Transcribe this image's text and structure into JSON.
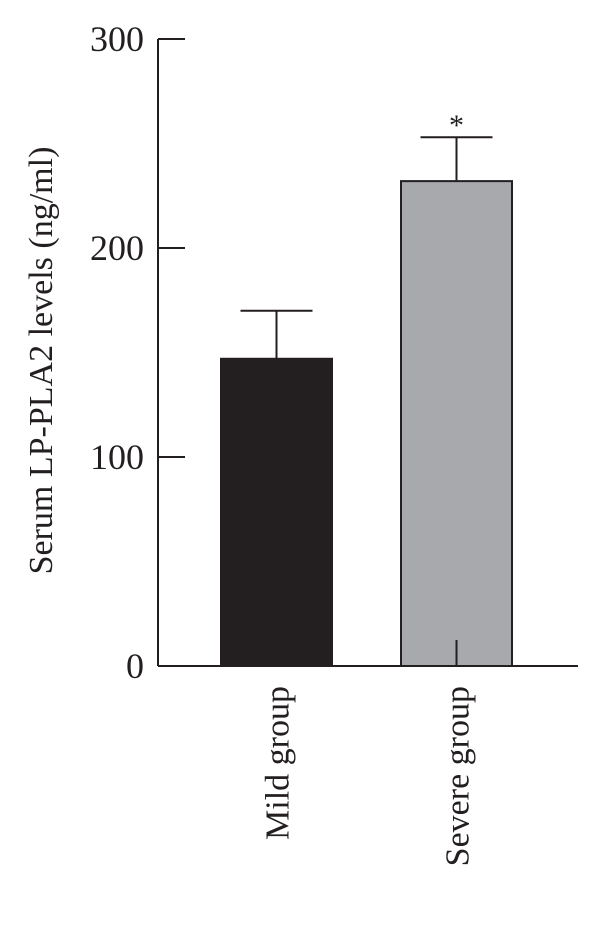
{
  "chart_data": {
    "type": "bar",
    "title": "",
    "xlabel": "",
    "ylabel": "Serum LP-PLA2 levels (ng/ml)",
    "ylim": [
      0,
      300
    ],
    "yticks": [
      "0",
      "100",
      "200",
      "300"
    ],
    "yticks_values": [
      0,
      100,
      200,
      300
    ],
    "categories": [
      "Mild group",
      "Severe group"
    ],
    "values": [
      147,
      232
    ],
    "errors": [
      23,
      21
    ],
    "colors": [
      "#231f20",
      "#a7a9ac"
    ],
    "annotations": [
      {
        "category_index": 1,
        "text": "*"
      }
    ],
    "grid": false,
    "legend": "none"
  }
}
